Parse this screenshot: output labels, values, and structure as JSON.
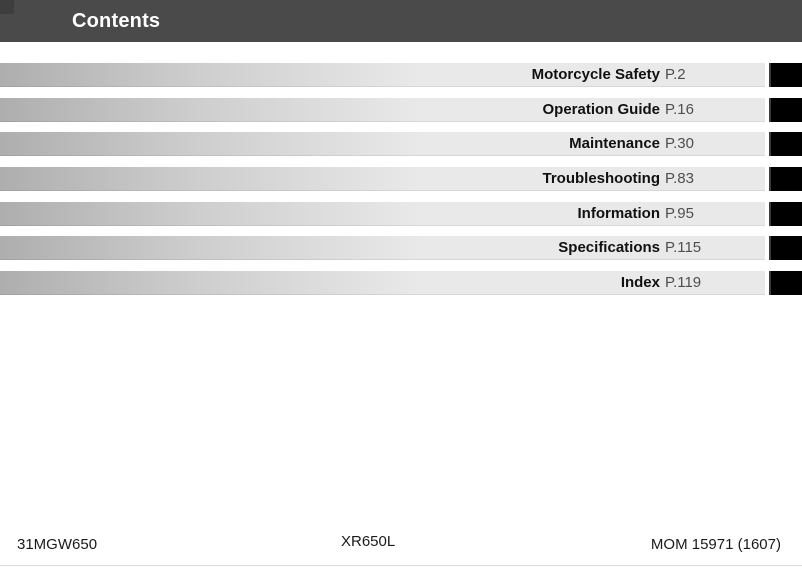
{
  "header": {
    "title": "Contents"
  },
  "toc": {
    "items": [
      {
        "label": "Motorcycle Safety",
        "page": "P.2"
      },
      {
        "label": "Operation Guide",
        "page": "P.16"
      },
      {
        "label": "Maintenance",
        "page": "P.30"
      },
      {
        "label": "Troubleshooting",
        "page": "P.83"
      },
      {
        "label": "Information",
        "page": "P.95"
      },
      {
        "label": "Specifications",
        "page": "P.115"
      },
      {
        "label": "Index",
        "page": "P.119"
      }
    ]
  },
  "footer": {
    "left_code": "31MGW650",
    "model": "XR650L",
    "right_code": "MOM 15971 (1607)"
  },
  "colors": {
    "header_bg": "#4a4a4a",
    "header_corner": "#3e3e3e",
    "bar_gradient_start": "#aeaeae",
    "bar_gradient_end": "#e9e9e9",
    "tab_color": "#000000",
    "label_color": "#111111",
    "page_ref_color": "#4f4f4f",
    "divider_color": "#d9d9d9"
  }
}
